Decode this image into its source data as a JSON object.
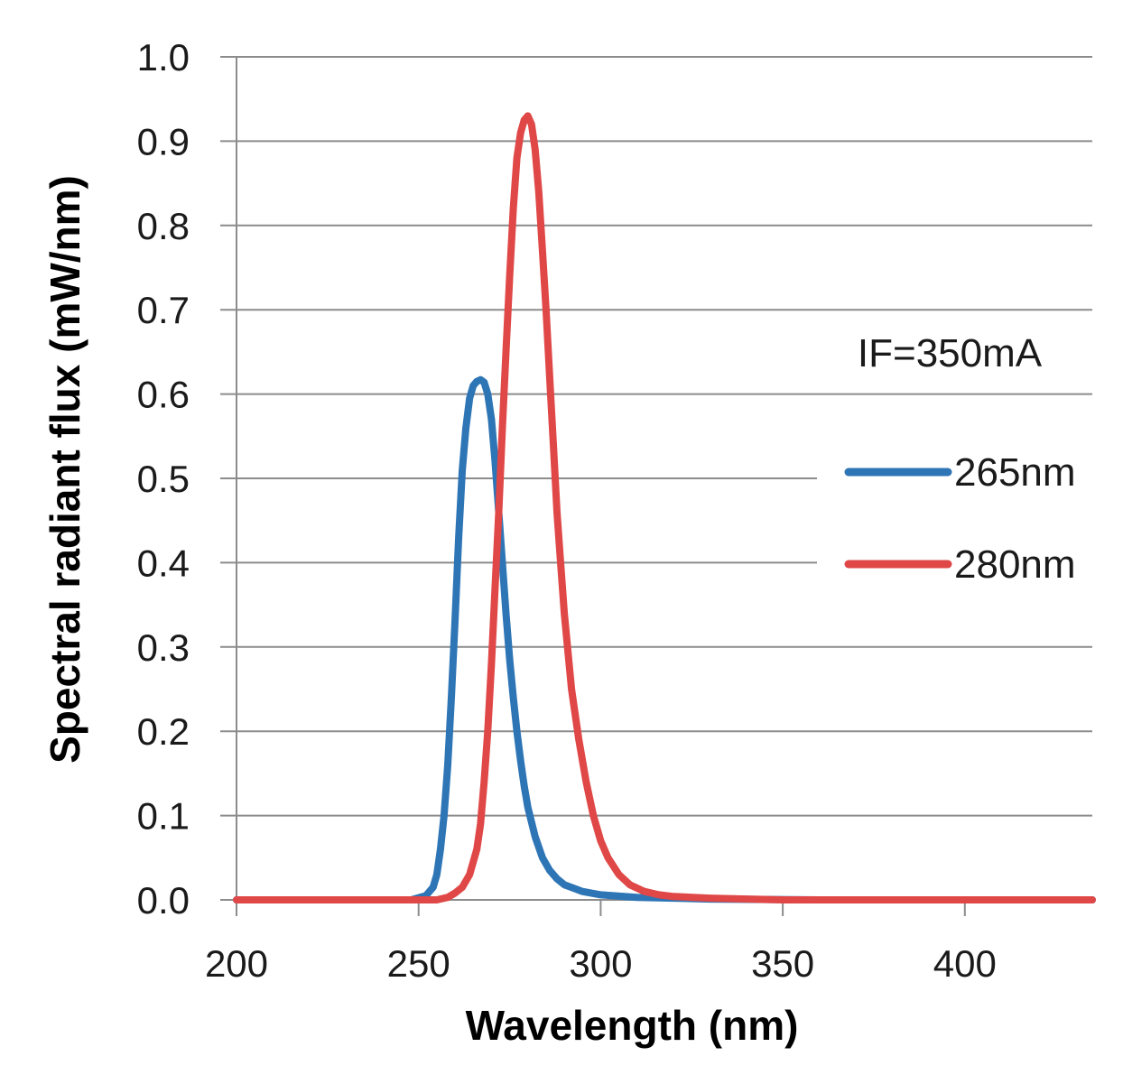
{
  "chart_data": {
    "type": "line",
    "title": "",
    "xlabel": "Wavelength (nm)",
    "ylabel": "Spectral radiant flux (mW/nm)",
    "xlim": [
      200,
      435
    ],
    "ylim": [
      0.0,
      1.0
    ],
    "grid": true,
    "legend_position": "right",
    "xticks": [
      200,
      250,
      300,
      350,
      400
    ],
    "xtick_labels": [
      "200",
      "250",
      "300",
      "350",
      "400"
    ],
    "yticks": [
      0.0,
      0.1,
      0.2,
      0.3,
      0.4,
      0.5,
      0.6,
      0.7,
      0.8,
      0.9,
      1.0
    ],
    "ytick_labels": [
      "0.0",
      "0.1",
      "0.2",
      "0.3",
      "0.4",
      "0.5",
      "0.6",
      "0.7",
      "0.8",
      "0.9",
      "1.0"
    ],
    "annotation": "IF=350mA",
    "series": [
      {
        "name": "265nm",
        "color": "#2e75b6",
        "x": [
          200,
          248,
          252,
          254,
          255,
          256,
          257,
          258,
          259,
          260,
          261,
          262,
          263,
          264,
          265,
          266,
          267,
          268,
          269,
          270,
          271,
          272,
          273,
          274,
          275,
          276,
          277,
          278,
          279,
          280,
          282,
          284,
          286,
          288,
          290,
          295,
          300,
          310,
          330,
          360,
          400,
          435
        ],
        "y": [
          0.0,
          0.0,
          0.005,
          0.015,
          0.03,
          0.06,
          0.1,
          0.16,
          0.24,
          0.33,
          0.43,
          0.51,
          0.56,
          0.595,
          0.61,
          0.615,
          0.617,
          0.614,
          0.6,
          0.57,
          0.52,
          0.46,
          0.4,
          0.34,
          0.285,
          0.24,
          0.2,
          0.165,
          0.135,
          0.11,
          0.075,
          0.05,
          0.035,
          0.025,
          0.018,
          0.01,
          0.006,
          0.003,
          0.001,
          0.0,
          0.0,
          0.0
        ]
      },
      {
        "name": "280nm",
        "color": "#e04747",
        "x": [
          200,
          255,
          258,
          260,
          262,
          264,
          266,
          267,
          268,
          269,
          270,
          271,
          272,
          273,
          274,
          275,
          276,
          277,
          278,
          279,
          280,
          281,
          282,
          283,
          284,
          285,
          286,
          287,
          288,
          289,
          290,
          292,
          294,
          296,
          298,
          300,
          302,
          305,
          308,
          312,
          316,
          320,
          330,
          350,
          400,
          435
        ],
        "y": [
          0.0,
          0.0,
          0.003,
          0.008,
          0.015,
          0.03,
          0.06,
          0.09,
          0.14,
          0.2,
          0.28,
          0.37,
          0.46,
          0.56,
          0.65,
          0.74,
          0.82,
          0.88,
          0.91,
          0.925,
          0.93,
          0.92,
          0.89,
          0.84,
          0.77,
          0.7,
          0.62,
          0.54,
          0.46,
          0.4,
          0.34,
          0.25,
          0.19,
          0.14,
          0.1,
          0.07,
          0.05,
          0.03,
          0.018,
          0.01,
          0.006,
          0.004,
          0.002,
          0.0,
          0.0,
          0.0
        ]
      }
    ]
  }
}
